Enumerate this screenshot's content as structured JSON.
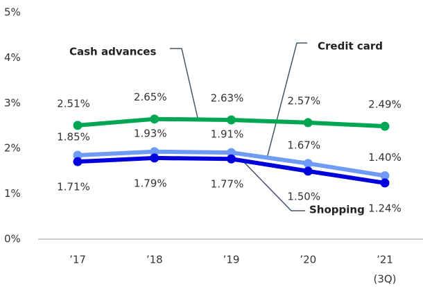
{
  "chart_data": {
    "type": "line",
    "categories": [
      "’17",
      "’18",
      "’19",
      "’20",
      "’21"
    ],
    "annotations": [
      "(3Q)"
    ],
    "series": [
      {
        "name": "Cash advances",
        "color": "#00a651",
        "values": [
          2.51,
          2.65,
          2.63,
          2.57,
          2.49
        ],
        "value_labels": [
          "2.51%",
          "2.65%",
          "2.63%",
          "2.57%",
          "2.49%"
        ]
      },
      {
        "name": "Credit card",
        "color": "#6f9bf5",
        "values": [
          1.85,
          1.93,
          1.91,
          1.67,
          1.4
        ],
        "value_labels": [
          "1.85%",
          "1.93%",
          "1.91%",
          "1.67%",
          "1.40%"
        ]
      },
      {
        "name": "Shopping",
        "color": "#0000dd",
        "values": [
          1.71,
          1.79,
          1.77,
          1.5,
          1.24
        ],
        "value_labels": [
          "1.71%",
          "1.79%",
          "1.77%",
          "1.50%",
          "1.24%"
        ]
      }
    ],
    "ylim": [
      0,
      5
    ],
    "yticks": [
      {
        "value": 0,
        "label": "0%"
      },
      {
        "value": 1,
        "label": "1%"
      },
      {
        "value": 2,
        "label": "2%"
      },
      {
        "value": 3,
        "label": "3%"
      },
      {
        "value": 4,
        "label": "4%"
      },
      {
        "value": 5,
        "label": "5%"
      }
    ],
    "grid": false
  }
}
